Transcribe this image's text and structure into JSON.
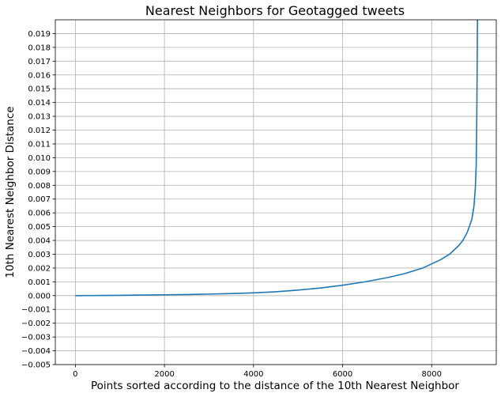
{
  "chart_data": {
    "type": "line",
    "title": "Nearest Neighbors for Geotagged tweets",
    "xlabel": "Points sorted according to the distance of the 10th Nearest Neighbor",
    "ylabel": "10th Nearest Neighbor Distance",
    "xlim": [
      -450,
      9450
    ],
    "ylim": [
      -0.005,
      0.02
    ],
    "xticks": [
      0,
      2000,
      4000,
      6000,
      8000
    ],
    "xtick_labels": [
      "0",
      "2000",
      "4000",
      "6000",
      "8000"
    ],
    "yticks": [
      -0.005,
      -0.004,
      -0.003,
      -0.002,
      -0.001,
      0.0,
      0.001,
      0.002,
      0.003,
      0.004,
      0.005,
      0.006,
      0.007,
      0.008,
      0.009,
      0.01,
      0.011,
      0.012,
      0.013,
      0.014,
      0.015,
      0.016,
      0.017,
      0.018,
      0.019
    ],
    "ytick_labels": [
      "−0.005",
      "−0.004",
      "−0.003",
      "−0.002",
      "−0.001",
      "0.000",
      "0.001",
      "0.002",
      "0.003",
      "0.004",
      "0.005",
      "0.006",
      "0.007",
      "0.008",
      "0.009",
      "0.010",
      "0.011",
      "0.012",
      "0.013",
      "0.014",
      "0.015",
      "0.016",
      "0.017",
      "0.018",
      "0.019"
    ],
    "grid": true,
    "line_color": "#1f77b4",
    "series": [
      {
        "x": [
          0,
          500,
          1000,
          1500,
          2000,
          2500,
          3000,
          3500,
          4000,
          4500,
          5000,
          5500,
          6000,
          6500,
          7000,
          7400,
          7800,
          8000,
          8200,
          8400,
          8600,
          8700,
          8800,
          8900,
          8950,
          8980,
          9000,
          9010,
          9020,
          9025,
          9030
        ],
        "y": [
          0.0,
          1e-05,
          2e-05,
          4e-05,
          6e-05,
          8e-05,
          0.00011,
          0.00015,
          0.0002,
          0.00028,
          0.0004,
          0.00055,
          0.00075,
          0.001,
          0.0013,
          0.0016,
          0.002,
          0.0023,
          0.0026,
          0.003,
          0.0036,
          0.004,
          0.0046,
          0.0055,
          0.0065,
          0.0078,
          0.0095,
          0.012,
          0.016,
          0.019,
          0.0205
        ]
      }
    ]
  }
}
